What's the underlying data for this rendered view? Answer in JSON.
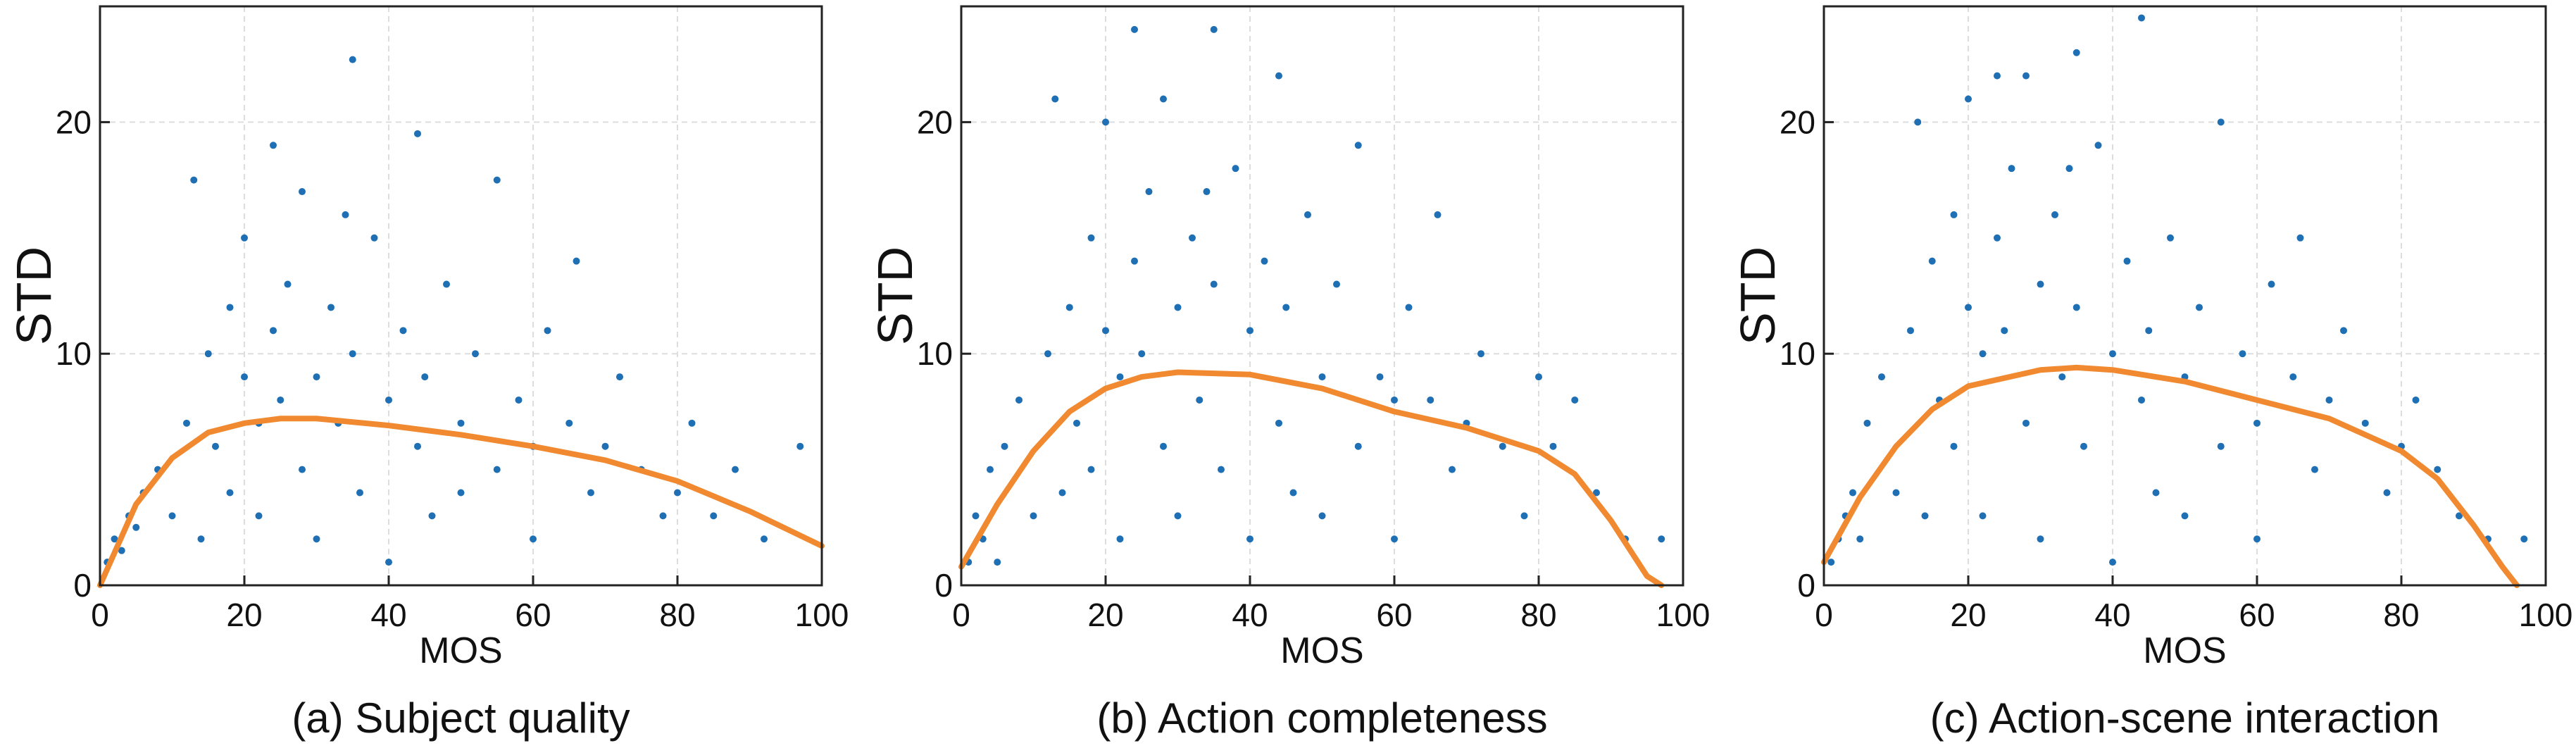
{
  "chart_data": [
    {
      "type": "scatter",
      "title": "(a) Subject quality",
      "xlabel": "MOS",
      "ylabel": "STD",
      "xlim": [
        0,
        100
      ],
      "ylim": [
        0,
        25
      ],
      "xticks": [
        0,
        20,
        40,
        60,
        80,
        100
      ],
      "yticks": [
        0,
        10,
        20
      ],
      "grid": true,
      "series": [
        {
          "type": "scatter",
          "color": "#1f6fb4",
          "x": [
            1,
            2,
            3,
            4,
            5,
            6,
            8,
            10,
            12,
            14,
            15,
            16,
            18,
            18,
            20,
            20,
            22,
            22,
            24,
            25,
            26,
            28,
            28,
            30,
            30,
            32,
            33,
            35,
            35,
            36,
            38,
            40,
            40,
            42,
            44,
            45,
            46,
            48,
            50,
            50,
            52,
            55,
            55,
            58,
            60,
            60,
            62,
            65,
            66,
            68,
            70,
            72,
            75,
            78,
            80,
            82,
            85,
            88,
            92,
            97,
            13,
            24,
            34,
            44
          ],
          "values": [
            1,
            2,
            1.5,
            3,
            2.5,
            4,
            5,
            3,
            7,
            2,
            10,
            6,
            12,
            4,
            9,
            15,
            7,
            3,
            11,
            8,
            13,
            5,
            17,
            9,
            2,
            12,
            7,
            10,
            22.7,
            4,
            15,
            8,
            1,
            11,
            6,
            9,
            3,
            13,
            7,
            4,
            10,
            5,
            17.5,
            8,
            6,
            2,
            11,
            7,
            14,
            4,
            6,
            9,
            5,
            3,
            4,
            7,
            3,
            5,
            2,
            6,
            17.5,
            19,
            16,
            19.5
          ]
        },
        {
          "type": "line",
          "color": "#f0892f",
          "x": [
            0,
            5,
            10,
            15,
            20,
            25,
            30,
            40,
            50,
            60,
            70,
            80,
            90,
            100
          ],
          "values": [
            0,
            3.5,
            5.5,
            6.6,
            7.0,
            7.2,
            7.2,
            6.9,
            6.5,
            6.0,
            5.4,
            4.5,
            3.2,
            1.7
          ]
        }
      ]
    },
    {
      "type": "scatter",
      "title": "(b) Action completeness",
      "xlabel": "MOS",
      "ylabel": "STD",
      "xlim": [
        0,
        100
      ],
      "ylim": [
        0,
        25
      ],
      "xticks": [
        0,
        20,
        40,
        60,
        80,
        100
      ],
      "yticks": [
        0,
        10,
        20
      ],
      "grid": true,
      "series": [
        {
          "type": "scatter",
          "color": "#1f6fb4",
          "x": [
            1,
            2,
            3,
            4,
            5,
            6,
            8,
            10,
            12,
            14,
            15,
            16,
            18,
            18,
            20,
            20,
            22,
            22,
            24,
            25,
            26,
            28,
            28,
            30,
            30,
            32,
            33,
            35,
            35,
            36,
            38,
            40,
            40,
            42,
            44,
            45,
            46,
            48,
            50,
            50,
            52,
            55,
            55,
            58,
            60,
            60,
            62,
            65,
            66,
            68,
            70,
            72,
            75,
            78,
            80,
            82,
            85,
            88,
            92,
            97,
            13,
            24,
            34,
            44
          ],
          "values": [
            1,
            3,
            2,
            5,
            1,
            6,
            8,
            3,
            10,
            4,
            12,
            7,
            15,
            5,
            11,
            20,
            9,
            2,
            14,
            10,
            17,
            6,
            21,
            12,
            3,
            15,
            8,
            13,
            24,
            5,
            18,
            11,
            2,
            14,
            7,
            12,
            4,
            16,
            9,
            3,
            13,
            6,
            19,
            9,
            8,
            2,
            12,
            8,
            16,
            5,
            7,
            10,
            6,
            3,
            9,
            6,
            8,
            4,
            2,
            2,
            21,
            24,
            17,
            22
          ]
        },
        {
          "type": "line",
          "color": "#f0892f",
          "x": [
            0,
            5,
            10,
            15,
            20,
            25,
            30,
            40,
            50,
            60,
            70,
            80,
            85,
            90,
            95,
            97
          ],
          "values": [
            0.8,
            3.5,
            5.8,
            7.5,
            8.5,
            9.0,
            9.2,
            9.1,
            8.5,
            7.5,
            6.8,
            5.8,
            4.8,
            2.8,
            0.4,
            0
          ]
        }
      ]
    },
    {
      "type": "scatter",
      "title": "(c) Action-scene interaction",
      "xlabel": "MOS",
      "ylabel": "STD",
      "xlim": [
        0,
        100
      ],
      "ylim": [
        0,
        25
      ],
      "xticks": [
        0,
        20,
        40,
        60,
        80,
        100
      ],
      "yticks": [
        0,
        10,
        20
      ],
      "grid": true,
      "series": [
        {
          "type": "scatter",
          "color": "#1f6fb4",
          "x": [
            1,
            2,
            3,
            4,
            5,
            6,
            8,
            10,
            12,
            14,
            15,
            16,
            18,
            18,
            20,
            20,
            22,
            22,
            24,
            25,
            26,
            28,
            28,
            30,
            30,
            32,
            33,
            35,
            35,
            36,
            38,
            40,
            40,
            42,
            44,
            45,
            46,
            48,
            50,
            50,
            52,
            55,
            55,
            58,
            60,
            60,
            62,
            65,
            66,
            68,
            70,
            72,
            75,
            78,
            80,
            82,
            85,
            88,
            92,
            97,
            13,
            24,
            34,
            44
          ],
          "values": [
            1,
            2,
            3,
            4,
            2,
            7,
            9,
            4,
            11,
            3,
            14,
            8,
            16,
            6,
            12,
            21,
            10,
            3,
            15,
            11,
            18,
            7,
            22,
            13,
            2,
            16,
            9,
            12,
            23,
            6,
            19,
            10,
            1,
            14,
            8,
            11,
            4,
            15,
            9,
            3,
            12,
            6,
            20,
            10,
            7,
            2,
            13,
            9,
            15,
            5,
            8,
            11,
            7,
            4,
            6,
            8,
            5,
            3,
            2,
            2,
            20,
            22,
            18,
            24.5
          ]
        },
        {
          "type": "line",
          "color": "#f0892f",
          "x": [
            0,
            5,
            10,
            15,
            20,
            30,
            35,
            40,
            50,
            60,
            70,
            80,
            85,
            90,
            94,
            96
          ],
          "values": [
            1,
            3.8,
            6,
            7.6,
            8.6,
            9.3,
            9.4,
            9.3,
            8.8,
            8.0,
            7.2,
            5.8,
            4.6,
            2.6,
            0.8,
            0
          ]
        }
      ]
    }
  ]
}
